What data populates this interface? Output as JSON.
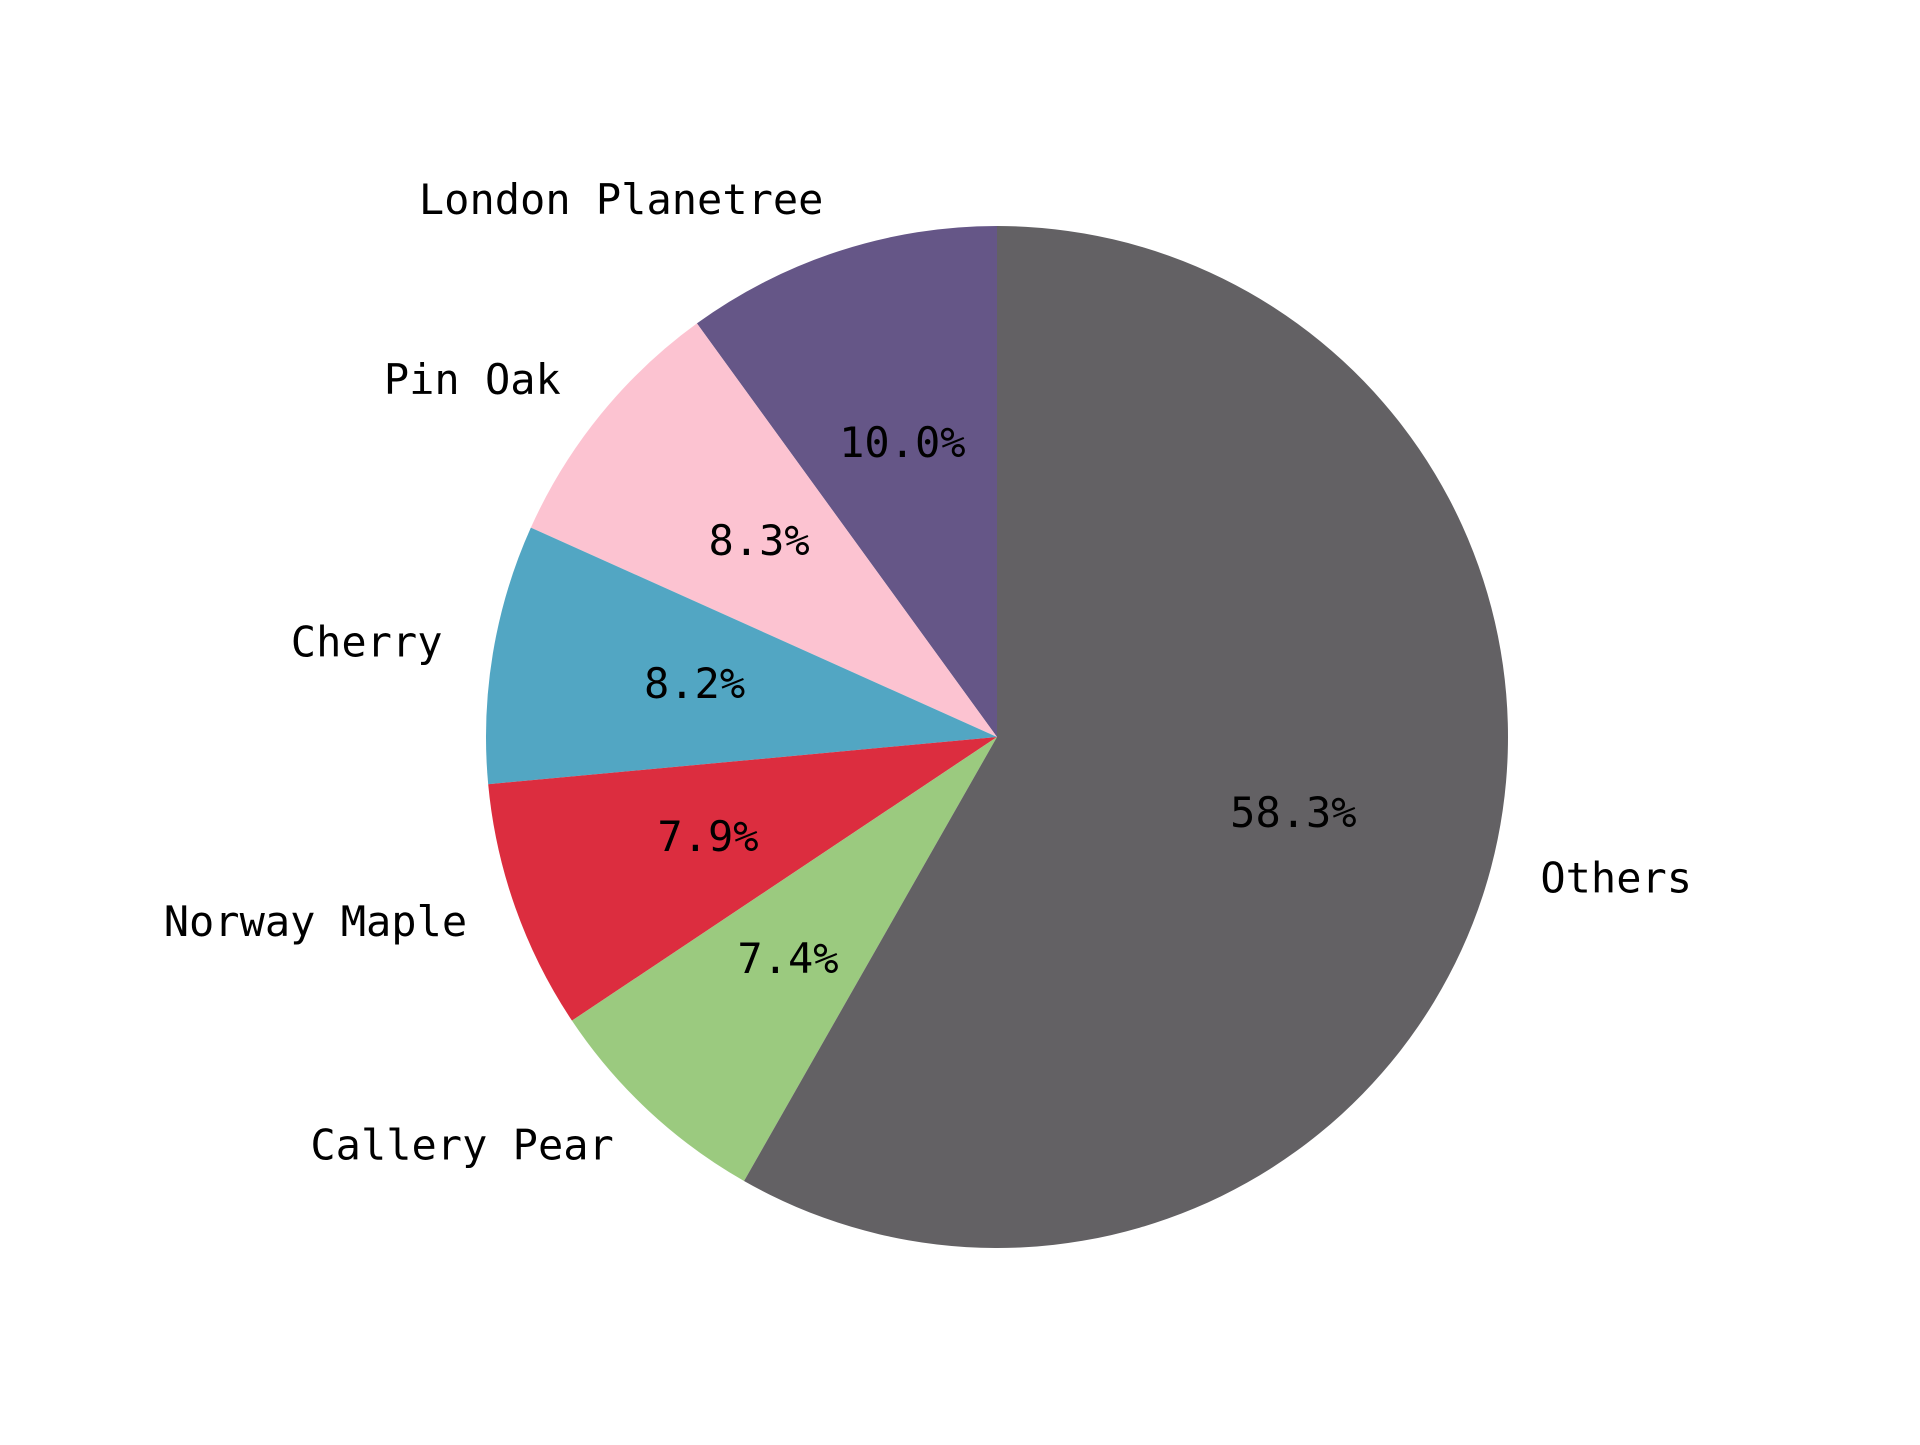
{
  "chart_data": {
    "type": "pie",
    "title": "",
    "start_angle_deg": 90,
    "direction": "counterclockwise",
    "labels": [
      "London Planetree",
      "Pin Oak",
      "Cherry",
      "Norway Maple",
      "Callery Pear",
      "Others"
    ],
    "values": [
      10.0,
      8.3,
      8.2,
      7.9,
      7.4,
      58.3
    ],
    "percent_labels": [
      "10.0%",
      "8.3%",
      "8.2%",
      "7.9%",
      "7.4%",
      "58.3%"
    ],
    "colors": [
      "#655687",
      "#fcc3d1",
      "#52a6c3",
      "#dc2d3f",
      "#9bca7f",
      "#636164"
    ],
    "legend": "none"
  }
}
